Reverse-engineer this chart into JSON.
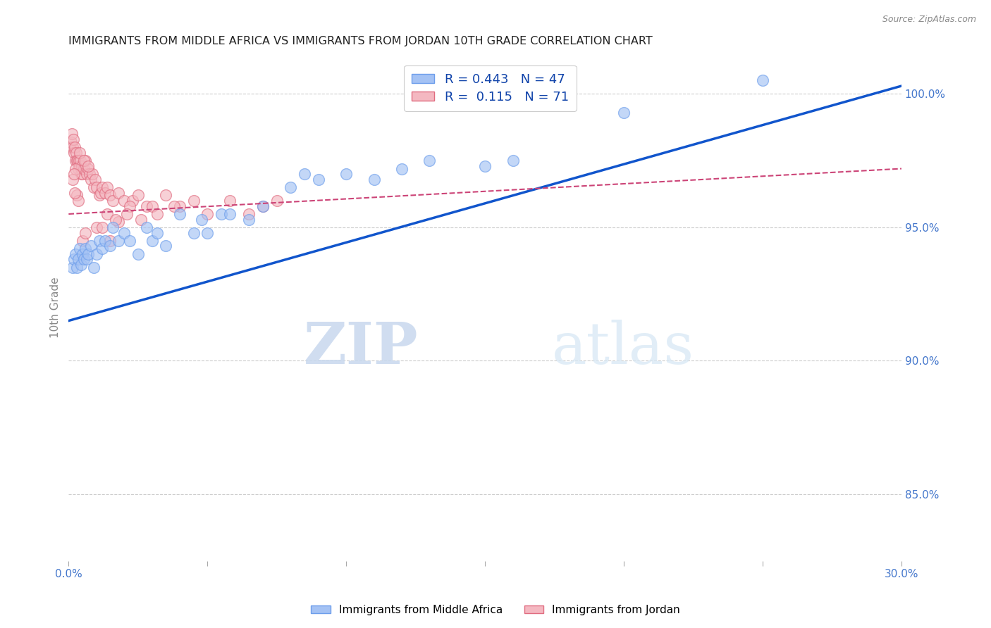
{
  "title": "IMMIGRANTS FROM MIDDLE AFRICA VS IMMIGRANTS FROM JORDAN 10TH GRADE CORRELATION CHART",
  "source": "Source: ZipAtlas.com",
  "ylabel": "10th Grade",
  "right_yticks": [
    85.0,
    90.0,
    95.0,
    100.0
  ],
  "xlim": [
    0.0,
    30.0
  ],
  "ylim": [
    82.5,
    101.5
  ],
  "legend_blue_label": "R = 0.443   N = 47",
  "legend_pink_label": "R =  0.115   N = 71",
  "legend_bottom_blue": "Immigrants from Middle Africa",
  "legend_bottom_pink": "Immigrants from Jordan",
  "watermark_zip": "ZIP",
  "watermark_atlas": "atlas",
  "blue_color": "#a4c2f4",
  "pink_color": "#f4b8c1",
  "blue_edge_color": "#6d9eeb",
  "pink_edge_color": "#e06c80",
  "blue_line_color": "#1155cc",
  "pink_line_color": "#cc4477",
  "blue_scatter_x": [
    0.15,
    0.2,
    0.25,
    0.3,
    0.35,
    0.4,
    0.45,
    0.5,
    0.55,
    0.6,
    0.65,
    0.7,
    0.8,
    0.9,
    1.0,
    1.1,
    1.2,
    1.3,
    1.5,
    1.6,
    1.8,
    2.0,
    2.2,
    2.5,
    3.0,
    3.5,
    4.0,
    4.5,
    5.0,
    5.5,
    6.5,
    7.0,
    8.0,
    9.0,
    10.0,
    11.0,
    13.0,
    15.0,
    16.0,
    20.0,
    25.0,
    2.8,
    3.2,
    4.8,
    5.8,
    8.5,
    12.0
  ],
  "blue_scatter_y": [
    93.5,
    93.8,
    94.0,
    93.5,
    93.8,
    94.2,
    93.6,
    94.0,
    93.8,
    94.2,
    93.8,
    94.0,
    94.3,
    93.5,
    94.0,
    94.5,
    94.2,
    94.5,
    94.3,
    95.0,
    94.5,
    94.8,
    94.5,
    94.0,
    94.5,
    94.3,
    95.5,
    94.8,
    94.8,
    95.5,
    95.3,
    95.8,
    96.5,
    96.8,
    97.0,
    96.8,
    97.5,
    97.3,
    97.5,
    99.3,
    100.5,
    95.0,
    94.8,
    95.3,
    95.5,
    97.0,
    97.2
  ],
  "pink_scatter_x": [
    0.05,
    0.1,
    0.12,
    0.15,
    0.18,
    0.2,
    0.22,
    0.25,
    0.28,
    0.3,
    0.32,
    0.35,
    0.38,
    0.4,
    0.42,
    0.45,
    0.48,
    0.5,
    0.55,
    0.6,
    0.65,
    0.7,
    0.75,
    0.8,
    0.85,
    0.9,
    0.95,
    1.0,
    1.1,
    1.15,
    1.2,
    1.3,
    1.4,
    1.5,
    1.6,
    1.8,
    2.0,
    2.3,
    2.5,
    2.8,
    3.0,
    3.5,
    4.0,
    0.15,
    0.25,
    0.4,
    0.55,
    0.7,
    0.5,
    0.3,
    0.2,
    1.0,
    1.4,
    1.8,
    2.2,
    2.6,
    3.2,
    1.5,
    3.8,
    4.5,
    5.0,
    5.8,
    6.5,
    7.0,
    7.5,
    2.1,
    1.7,
    1.2,
    0.6,
    0.35,
    0.22
  ],
  "pink_scatter_y": [
    98.0,
    98.2,
    98.5,
    98.0,
    98.3,
    97.8,
    98.0,
    97.5,
    97.8,
    97.5,
    97.5,
    97.2,
    97.5,
    97.3,
    97.5,
    97.0,
    97.3,
    97.0,
    97.2,
    97.5,
    97.0,
    97.2,
    97.0,
    96.8,
    97.0,
    96.5,
    96.8,
    96.5,
    96.2,
    96.3,
    96.5,
    96.3,
    96.5,
    96.2,
    96.0,
    96.3,
    96.0,
    96.0,
    96.2,
    95.8,
    95.8,
    96.2,
    95.8,
    96.8,
    97.2,
    97.8,
    97.5,
    97.3,
    94.5,
    96.2,
    97.0,
    95.0,
    95.5,
    95.2,
    95.8,
    95.3,
    95.5,
    94.5,
    95.8,
    96.0,
    95.5,
    96.0,
    95.5,
    95.8,
    96.0,
    95.5,
    95.3,
    95.0,
    94.8,
    96.0,
    96.3
  ],
  "blue_trend": [
    91.5,
    100.3
  ],
  "pink_trend": [
    95.5,
    97.2
  ]
}
